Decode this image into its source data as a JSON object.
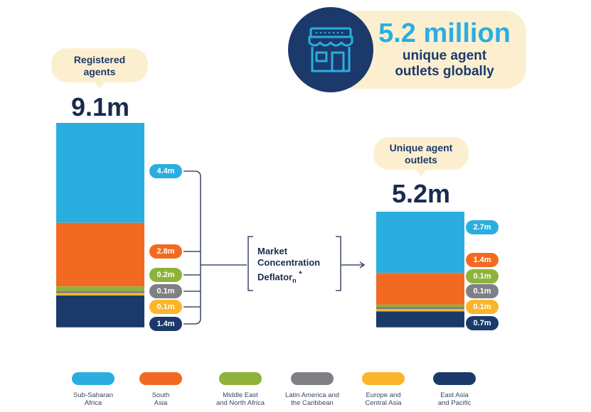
{
  "headline": {
    "value": "5.2 million",
    "line1": "unique agent",
    "line2": "outlets globally"
  },
  "colors": {
    "sub_saharan_africa": "#2aaee0",
    "south_asia": "#f26a21",
    "middle_east_north_africa": "#8db33a",
    "latin_america_caribbean": "#7f8083",
    "europe_central_asia": "#fbb52a",
    "east_asia_pacific": "#1b3a6b"
  },
  "left": {
    "label_line1": "Registered",
    "label_line2": "agents",
    "total": "9.1m"
  },
  "right": {
    "label_line1": "Unique agent",
    "label_line2": "outlets",
    "total": "5.2m"
  },
  "deflator": {
    "line1": "Market",
    "line2": "Concentration",
    "line3": "Deflator",
    "subscript": "n",
    "mark": "*"
  },
  "chart_data": {
    "type": "bar",
    "stacked": true,
    "categories": [
      "Registered agents",
      "Unique agent outlets"
    ],
    "totals": [
      9.1,
      5.2
    ],
    "series": [
      {
        "name": "Sub-Saharan Africa",
        "values": [
          4.4,
          2.7
        ],
        "labels": [
          "4.4m",
          "2.7m"
        ]
      },
      {
        "name": "South Asia",
        "values": [
          2.8,
          1.4
        ],
        "labels": [
          "2.8m",
          "1.4m"
        ]
      },
      {
        "name": "Middle East and North Africa",
        "values": [
          0.2,
          0.1
        ],
        "labels": [
          "0.2m",
          "0.1m"
        ]
      },
      {
        "name": "Latin America and the Caribbean",
        "values": [
          0.1,
          0.1
        ],
        "labels": [
          "0.1m",
          "0.1m"
        ]
      },
      {
        "name": "Europe and Central Asia",
        "values": [
          0.1,
          0.1
        ],
        "labels": [
          "0.1m",
          "0.1m"
        ]
      },
      {
        "name": "East Asia and Pacific",
        "values": [
          1.4,
          0.7
        ],
        "labels": [
          "1.4m",
          "0.7m"
        ]
      }
    ],
    "unit": "m",
    "legend_position": "bottom"
  },
  "legend": [
    {
      "line1": "Sub-Saharan",
      "line2": "Africa"
    },
    {
      "line1": "South",
      "line2": "Asia"
    },
    {
      "line1": "Middle East",
      "line2": "and North Africa"
    },
    {
      "line1": "Latin America and",
      "line2": "the Caribbean"
    },
    {
      "line1": "Europe and",
      "line2": "Central Asia"
    },
    {
      "line1": "East Asia",
      "line2": "and Pacific"
    }
  ]
}
